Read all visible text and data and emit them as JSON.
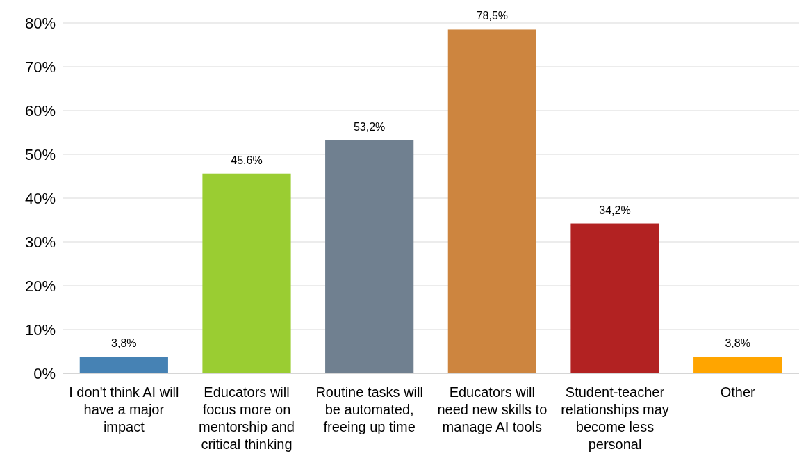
{
  "chart_data": {
    "type": "bar",
    "categories": [
      "I don't think AI will have a major impact",
      "Educators will focus more on mentorship and critical thinking",
      "Routine tasks will be automated, freeing up time",
      "Educators will need new skills to manage AI tools",
      "Student-teacher relationships may become less personal",
      "Other"
    ],
    "values": [
      3.8,
      45.6,
      53.2,
      78.5,
      34.2,
      3.8
    ],
    "colors": [
      "#4682b4",
      "#9acd32",
      "#708090",
      "#cd853f",
      "#b22222",
      "#ffa500"
    ],
    "value_labels": [
      "3,8%",
      "45,6%",
      "53,2%",
      "78,5%",
      "34,2%",
      "3,8%"
    ],
    "ylim": [
      0,
      80
    ],
    "yticks": [
      {
        "value": 0,
        "label": "0%"
      },
      {
        "value": 10,
        "label": "10%"
      },
      {
        "value": 20,
        "label": "20%"
      },
      {
        "value": 30,
        "label": "30%"
      },
      {
        "value": 40,
        "label": "40%"
      },
      {
        "value": 50,
        "label": "50%"
      },
      {
        "value": 60,
        "label": "60%"
      },
      {
        "value": 70,
        "label": "70%"
      },
      {
        "value": 80,
        "label": "80%"
      }
    ],
    "grid": "y"
  }
}
